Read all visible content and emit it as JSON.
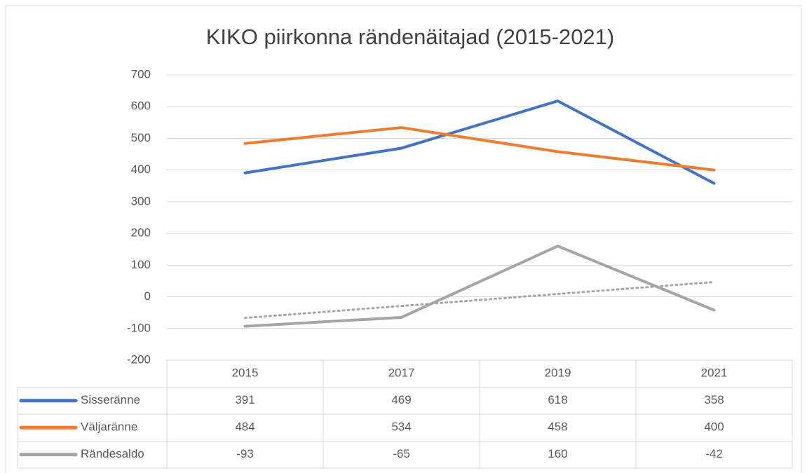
{
  "chart_data": {
    "type": "line",
    "title": "KIKO piirkonna rändenäitajad (2015-2021)",
    "categories": [
      "2015",
      "2017",
      "2019",
      "2021"
    ],
    "series": [
      {
        "name": "Sisseränne",
        "color": "#4472c4",
        "values": [
          391,
          469,
          618,
          358
        ]
      },
      {
        "name": "Väljaränne",
        "color": "#ed7d31",
        "values": [
          484,
          534,
          458,
          400
        ]
      },
      {
        "name": "Rändesaldo",
        "color": "#a5a5a5",
        "values": [
          -93,
          -65,
          160,
          -42
        ],
        "trendline": "linear"
      }
    ],
    "ylim": [
      -200,
      700
    ],
    "yticks": [
      -200,
      -100,
      0,
      100,
      200,
      300,
      400,
      500,
      600,
      700
    ],
    "yticks_labels": null,
    "grid": true,
    "legend": "table"
  }
}
